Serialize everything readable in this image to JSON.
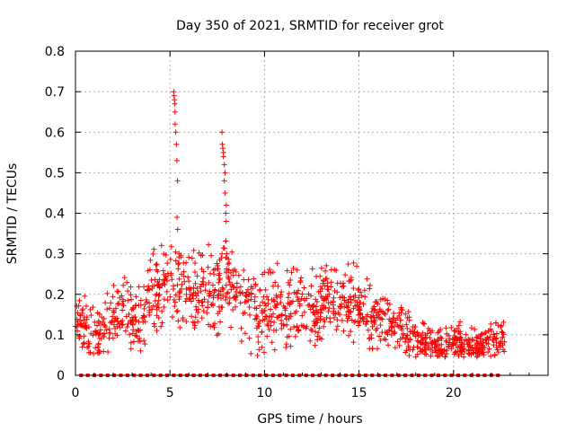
{
  "chart_data": {
    "type": "scatter",
    "title": "Day 350 of 2021, SRMTID for receiver grot",
    "xlabel": "GPS time / hours",
    "ylabel": "SRMTID / TECUs",
    "xlim": [
      0,
      25
    ],
    "ylim": [
      0,
      0.8
    ],
    "xticks": [
      0,
      5,
      10,
      15,
      20
    ],
    "yticks": [
      0,
      0.1,
      0.2,
      0.3,
      0.4,
      0.5,
      0.6,
      0.7,
      0.8
    ],
    "xtick_labels": [
      "0",
      "5",
      "10",
      "15",
      "20"
    ],
    "ytick_labels": [
      "0",
      "0.1",
      "0.2",
      "0.3",
      "0.4",
      "0.5",
      "0.6",
      "0.7",
      "0.8"
    ],
    "grid": true,
    "marker": "+",
    "color": "#ff0000",
    "series": [
      {
        "name": "SRMTID",
        "profile": {
          "x": [
            0.0,
            0.5,
            1.0,
            1.5,
            2.0,
            2.5,
            3.0,
            3.5,
            4.0,
            4.5,
            5.0,
            5.5,
            6.0,
            6.5,
            7.0,
            7.5,
            8.0,
            8.5,
            9.0,
            9.5,
            10.0,
            10.5,
            11.0,
            11.5,
            12.0,
            12.5,
            13.0,
            13.5,
            14.0,
            14.5,
            15.0,
            15.5,
            16.0,
            16.5,
            17.0,
            17.5,
            18.0,
            18.5,
            19.0,
            19.5,
            20.0,
            20.5,
            21.0,
            21.5,
            22.0,
            22.7
          ],
          "y": [
            0.14,
            0.11,
            0.1,
            0.12,
            0.15,
            0.17,
            0.14,
            0.15,
            0.2,
            0.21,
            0.23,
            0.22,
            0.21,
            0.2,
            0.19,
            0.2,
            0.26,
            0.21,
            0.18,
            0.16,
            0.16,
            0.17,
            0.15,
            0.15,
            0.16,
            0.15,
            0.17,
            0.18,
            0.19,
            0.18,
            0.17,
            0.15,
            0.14,
            0.14,
            0.14,
            0.11,
            0.09,
            0.08,
            0.07,
            0.07,
            0.09,
            0.07,
            0.07,
            0.07,
            0.08,
            0.09
          ]
        },
        "spread": {
          "x": [
            0.0,
            5.0,
            8.0,
            10.0,
            15.0,
            17.0,
            18.0,
            22.7
          ],
          "y": [
            0.05,
            0.08,
            0.09,
            0.08,
            0.07,
            0.05,
            0.035,
            0.035
          ]
        },
        "spikes": [
          {
            "x_start": 5.2,
            "x_end": 5.45,
            "y_values": [
              0.7,
              0.69,
              0.68,
              0.67,
              0.65,
              0.62,
              0.6,
              0.57,
              0.53,
              0.48,
              0.39,
              0.36
            ]
          },
          {
            "x_start": 7.75,
            "x_end": 8.05,
            "y_values": [
              0.6,
              0.57,
              0.56,
              0.55,
              0.54,
              0.52,
              0.5,
              0.48,
              0.45,
              0.42,
              0.4,
              0.38
            ]
          }
        ],
        "count": 1300
      }
    ],
    "zero_marker_spacing_hours": 0.35
  }
}
